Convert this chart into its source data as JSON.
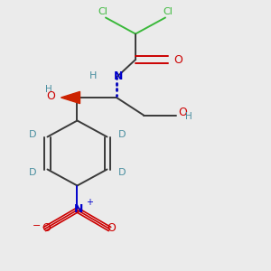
{
  "background_color": "#ebebeb",
  "figsize": [
    3.0,
    3.0
  ],
  "dpi": 100,
  "colors": {
    "C": "#3a3a3a",
    "Cl": "#3ab83a",
    "N": "#0000cc",
    "O": "#cc0000",
    "H": "#4a8fa0",
    "D": "#4a8fa0",
    "bond": "#3a3a3a",
    "wedge_red": "#cc2200",
    "wedge_blue": "#0000bb"
  }
}
